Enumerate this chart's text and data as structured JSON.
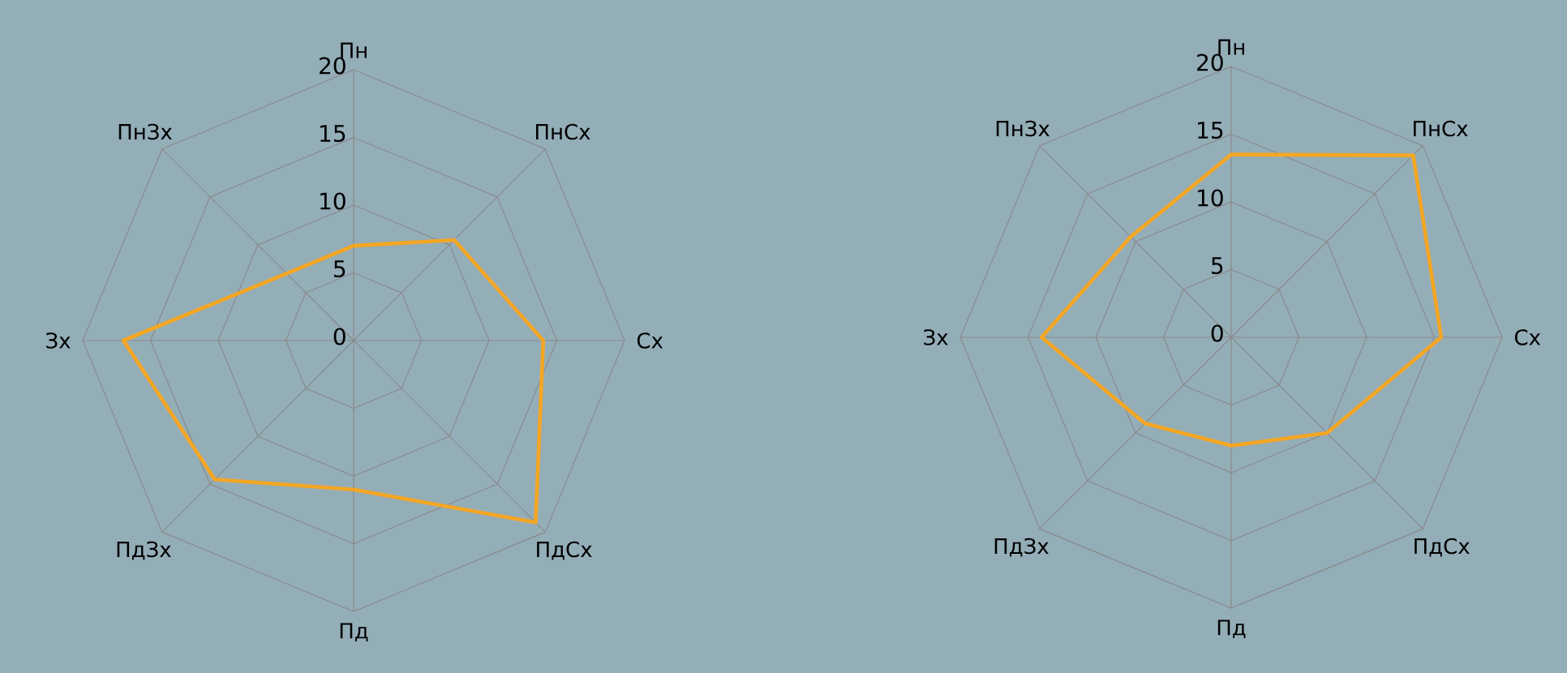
{
  "chart_data": [
    {
      "type": "radar",
      "categories": [
        "Пн",
        "ПнСх",
        "Сх",
        "ПдСх",
        "Пд",
        "ПдЗх",
        "Зх",
        "ПнЗх"
      ],
      "series": [
        {
          "color": "#f5a623",
          "values": [
            7,
            10.5,
            14,
            19,
            11,
            14.5,
            17,
            7
          ]
        }
      ],
      "ylim": [
        0,
        20
      ],
      "yticks": [
        0,
        5,
        10,
        15,
        20
      ],
      "grid": true
    },
    {
      "type": "radar",
      "categories": [
        "Пн",
        "ПнСх",
        "Сх",
        "ПдСх",
        "Пд",
        "ПдЗх",
        "Зх",
        "ПнЗх"
      ],
      "series": [
        {
          "color": "#f5a623",
          "values": [
            13.5,
            19,
            15.5,
            10,
            8,
            9,
            14,
            10.5
          ]
        }
      ],
      "ylim": [
        0,
        20
      ],
      "yticks": [
        0,
        5,
        10,
        15,
        20
      ],
      "grid": true
    }
  ]
}
